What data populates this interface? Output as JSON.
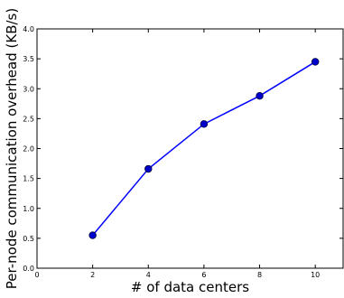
{
  "chart_data": {
    "type": "line",
    "title": "",
    "xlabel": "# of data centers",
    "ylabel": "Per-node communication overhead (KB/s)",
    "xlim": [
      0,
      11
    ],
    "ylim": [
      0,
      4.0
    ],
    "xticks": [
      0,
      2,
      4,
      6,
      8,
      10
    ],
    "xtick_labels": [
      "0",
      "2",
      "4",
      "6",
      "8",
      "10"
    ],
    "yticks": [
      0,
      0.5,
      1.0,
      1.5,
      2.0,
      2.5,
      3.0,
      3.5,
      4.0
    ],
    "ytick_labels": [
      "0.0",
      "0.5",
      "1.0",
      "1.5",
      "2.0",
      "2.5",
      "3.0",
      "3.5",
      "4.0"
    ],
    "grid": false,
    "legend": "none",
    "series": [
      {
        "x": [
          2,
          4,
          6,
          8,
          10
        ],
        "values": [
          0.55,
          1.66,
          2.41,
          2.88,
          3.45
        ],
        "color": "#0000ff",
        "marker_color": "#0000cc",
        "marker": "circle"
      }
    ]
  }
}
